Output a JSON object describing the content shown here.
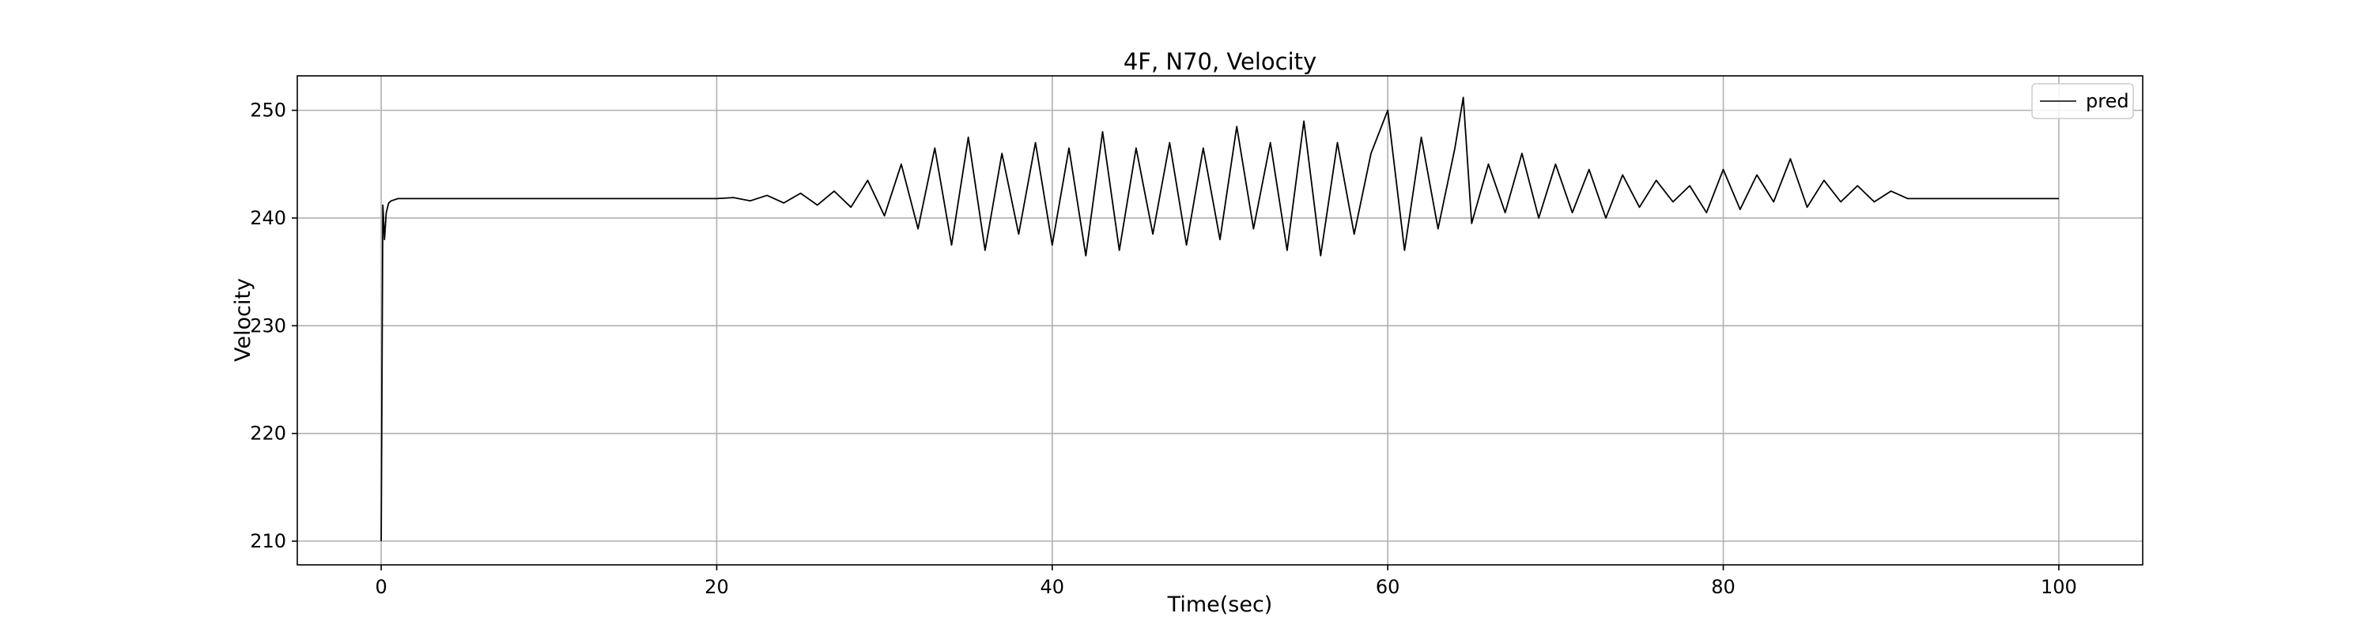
{
  "chart_data": {
    "type": "line",
    "title": "4F, N70, Velocity",
    "xlabel": "Time(sec)",
    "ylabel": "Velocity",
    "xlim": [
      -5,
      105
    ],
    "ylim": [
      207.8,
      253.2
    ],
    "xticks": [
      0,
      20,
      40,
      60,
      80,
      100
    ],
    "yticks": [
      210,
      220,
      230,
      240,
      250
    ],
    "grid": true,
    "legend_position": "top-right",
    "line_color": "#000000",
    "series": [
      {
        "name": "pred",
        "x": [
          0,
          0.1,
          0.2,
          0.3,
          0.45,
          0.6,
          0.8,
          1.0,
          1.5,
          2.0,
          4,
          6,
          8,
          10,
          12,
          14,
          16,
          18,
          20,
          21,
          22,
          23,
          24,
          25,
          26,
          27,
          28,
          29,
          30,
          31,
          32,
          33,
          34,
          35,
          36,
          37,
          38,
          39,
          40,
          41,
          42,
          43,
          44,
          45,
          46,
          47,
          48,
          49,
          50,
          51,
          52,
          53,
          54,
          55,
          56,
          57,
          58,
          59,
          60,
          61,
          62,
          63,
          64,
          64.5,
          65,
          66,
          67,
          68,
          69,
          70,
          71,
          72,
          73,
          74,
          75,
          76,
          77,
          78,
          79,
          80,
          81,
          82,
          83,
          84,
          85,
          86,
          87,
          88,
          89,
          90,
          91,
          92,
          94,
          96,
          98,
          100
        ],
        "y": [
          210,
          241.2,
          238,
          240.5,
          241.4,
          241.6,
          241.7,
          241.8,
          241.8,
          241.8,
          241.8,
          241.8,
          241.8,
          241.8,
          241.8,
          241.8,
          241.8,
          241.8,
          241.8,
          241.9,
          241.6,
          242.1,
          241.4,
          242.3,
          241.2,
          242.5,
          241.0,
          243.5,
          240.2,
          245.0,
          239.0,
          246.5,
          237.5,
          247.5,
          237.0,
          246.0,
          238.5,
          247.0,
          237.5,
          246.5,
          236.5,
          248.0,
          237.0,
          246.5,
          238.5,
          247.0,
          237.5,
          246.5,
          238.0,
          248.5,
          239.0,
          247.0,
          237.0,
          249.0,
          236.5,
          247.0,
          238.5,
          246.0,
          250.0,
          237.0,
          247.5,
          239.0,
          246.5,
          251.2,
          239.5,
          245.0,
          240.5,
          246.0,
          240.0,
          245.0,
          240.5,
          244.5,
          240.0,
          244.0,
          241.0,
          243.5,
          241.5,
          243.0,
          240.5,
          244.5,
          240.8,
          244.0,
          241.5,
          245.5,
          241.0,
          243.5,
          241.5,
          243.0,
          241.5,
          242.5,
          241.8,
          241.8,
          241.8,
          241.8,
          241.8,
          241.8
        ]
      }
    ]
  }
}
